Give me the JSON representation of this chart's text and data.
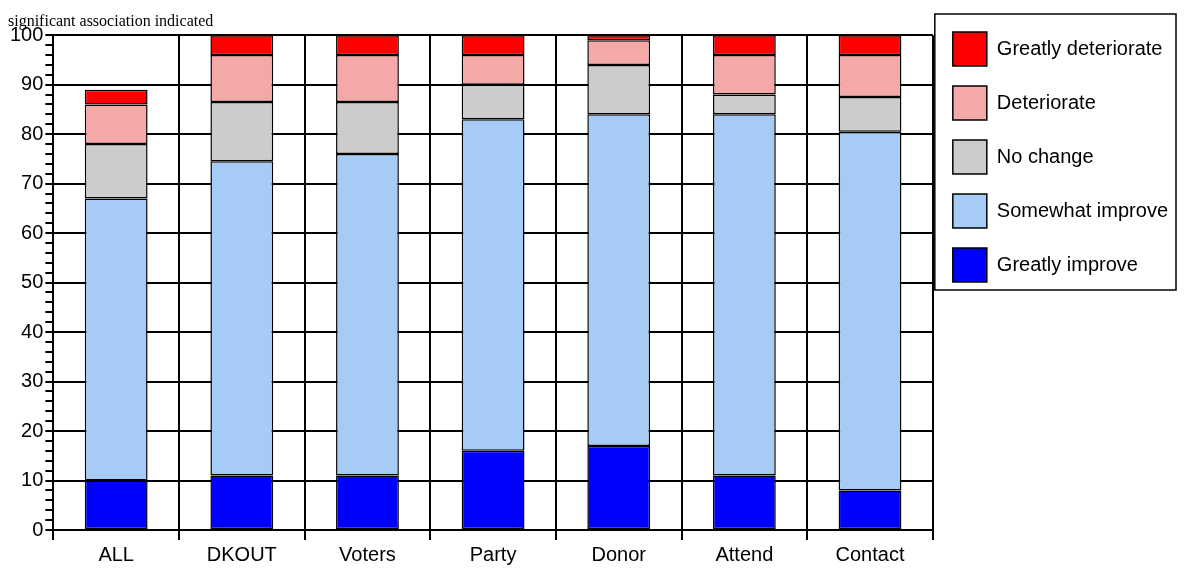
{
  "chart_data": {
    "type": "bar",
    "title": "significant association indicated",
    "categories": [
      "ALL",
      "DKOUT",
      "Voters",
      "Party",
      "Donor",
      "Attend",
      "Contact"
    ],
    "stacked": true,
    "series": [
      {
        "name": "Greatly improve",
        "color": "#0000ff",
        "values": [
          10,
          11,
          11,
          16,
          17,
          11,
          8
        ]
      },
      {
        "name": "Somewhat improve",
        "color": "#a6cbf5",
        "values": [
          57,
          63.5,
          65,
          67,
          67,
          73,
          72.5
        ]
      },
      {
        "name": "No change",
        "color": "#cccccc",
        "values": [
          11,
          12,
          10.5,
          7,
          10,
          4,
          7
        ]
      },
      {
        "name": "Deteriorate",
        "color": "#f5a8a8",
        "values": [
          8,
          9.5,
          9.5,
          6,
          5,
          8,
          8.5
        ]
      },
      {
        "name": "Greatly deteriorate",
        "color": "#ff0000",
        "values": [
          3,
          4,
          4,
          4,
          1,
          4,
          4
        ]
      }
    ],
    "ylim": [
      0,
      100
    ],
    "yticks": [
      0,
      {
        "value": 2,
        "label": null
      },
      {
        "value": 4,
        "label": null
      },
      {
        "value": 6,
        "label": null
      },
      {
        "value": 8,
        "label": null
      },
      10,
      {
        "value": 12,
        "label": null
      },
      {
        "value": 14,
        "label": null
      },
      {
        "value": 16,
        "label": null
      },
      {
        "value": 18,
        "label": null
      },
      20,
      {
        "value": 22,
        "label": null
      },
      {
        "value": 24,
        "label": null
      },
      {
        "value": 26,
        "label": null
      },
      {
        "value": 28,
        "label": null
      },
      30,
      {
        "value": 32,
        "label": null
      },
      {
        "value": 34,
        "label": null
      },
      {
        "value": 36,
        "label": null
      },
      {
        "value": 38,
        "label": null
      },
      40,
      {
        "value": 42,
        "label": null
      },
      {
        "value": 44,
        "label": null
      },
      {
        "value": 46,
        "label": null
      },
      {
        "value": 48,
        "label": null
      },
      50,
      {
        "value": 52,
        "label": null
      },
      {
        "value": 54,
        "label": null
      },
      {
        "value": 56,
        "label": null
      },
      {
        "value": 58,
        "label": null
      },
      60,
      {
        "value": 62,
        "label": null
      },
      {
        "value": 64,
        "label": null
      },
      {
        "value": 66,
        "label": null
      },
      {
        "value": 68,
        "label": null
      },
      70,
      {
        "value": 72,
        "label": null
      },
      {
        "value": 74,
        "label": null
      },
      {
        "value": 76,
        "label": null
      },
      {
        "value": 78,
        "label": null
      },
      80,
      {
        "value": 82,
        "label": null
      },
      {
        "value": 84,
        "label": null
      },
      {
        "value": 86,
        "label": null
      },
      {
        "value": 88,
        "label": null
      },
      90,
      {
        "value": 92,
        "label": null
      },
      {
        "value": 94,
        "label": null
      },
      {
        "value": 96,
        "label": null
      },
      {
        "value": 98,
        "label": null
      },
      100
    ],
    "grid": true,
    "legend": "top right"
  }
}
